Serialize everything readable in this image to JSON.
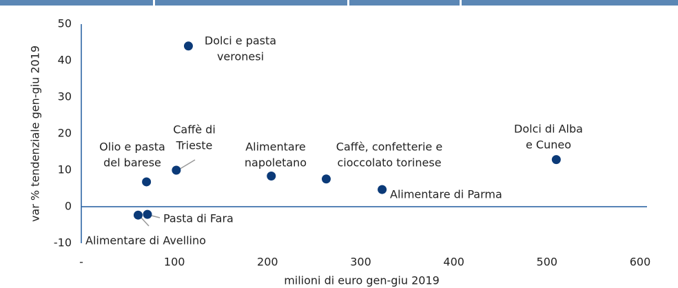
{
  "chart_data": {
    "type": "scatter",
    "x_label": "milioni di euro gen-giu 2019",
    "y_label": "var % tendenziale gen-giu 2019",
    "color": "#0b3a78",
    "xlim": [
      0,
      600
    ],
    "ylim": [
      -10,
      50
    ],
    "xticks": [
      {
        "value": 0,
        "label": "-"
      },
      100,
      200,
      300,
      400,
      500,
      600
    ],
    "yticks": [
      -10,
      0,
      10,
      20,
      30,
      40,
      50
    ],
    "points": [
      {
        "label": [
          "Dolci e pasta",
          "veronesi"
        ],
        "x": 115,
        "y": 44
      },
      {
        "label": [
          "Caffè di",
          "Trieste"
        ],
        "x": 102,
        "y": 10
      },
      {
        "label": [
          "Olio e pasta",
          "del barese"
        ],
        "x": 70,
        "y": 6.8
      },
      {
        "label": [
          "Alimentare",
          "napoletano"
        ],
        "x": 204,
        "y": 8.4
      },
      {
        "label": [
          "Caffè, confetterie e",
          "cioccolato torinese"
        ],
        "x": 263,
        "y": 7.6
      },
      {
        "label": [
          "Alimentare di Parma"
        ],
        "x": 323,
        "y": 4.7
      },
      {
        "label": [
          "Dolci di Alba",
          "e Cuneo"
        ],
        "x": 510,
        "y": 12.9
      },
      {
        "label": [
          "Pasta di Fara"
        ],
        "x": 71,
        "y": -2.1
      },
      {
        "label": [
          "Alimentare di Avellino"
        ],
        "x": 61,
        "y": -2.3
      }
    ]
  }
}
